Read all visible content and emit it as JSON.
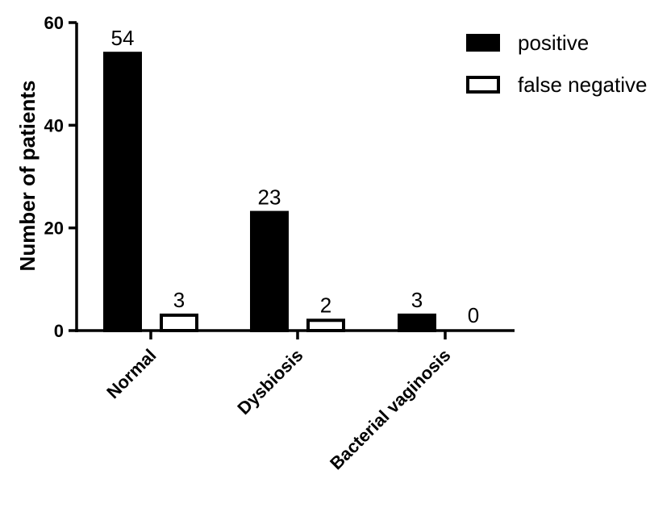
{
  "chart_data": {
    "type": "bar",
    "categories": [
      "Normal",
      "Dysbiosis",
      "Bacterial vaginosis"
    ],
    "series": [
      {
        "name": "positive",
        "values": [
          54,
          23,
          3
        ],
        "fill": "#000000"
      },
      {
        "name": "false negative",
        "values": [
          3,
          2,
          0
        ],
        "fill": "#ffffff"
      }
    ],
    "title": "",
    "xlabel": "",
    "ylabel": "Number of patients",
    "ylim": [
      0,
      60
    ],
    "yticks": [
      0,
      20,
      40,
      60
    ],
    "grid": false,
    "legend_position": "top-right",
    "colors": {
      "axis": "#000000",
      "bar_edge": "#000000"
    }
  }
}
